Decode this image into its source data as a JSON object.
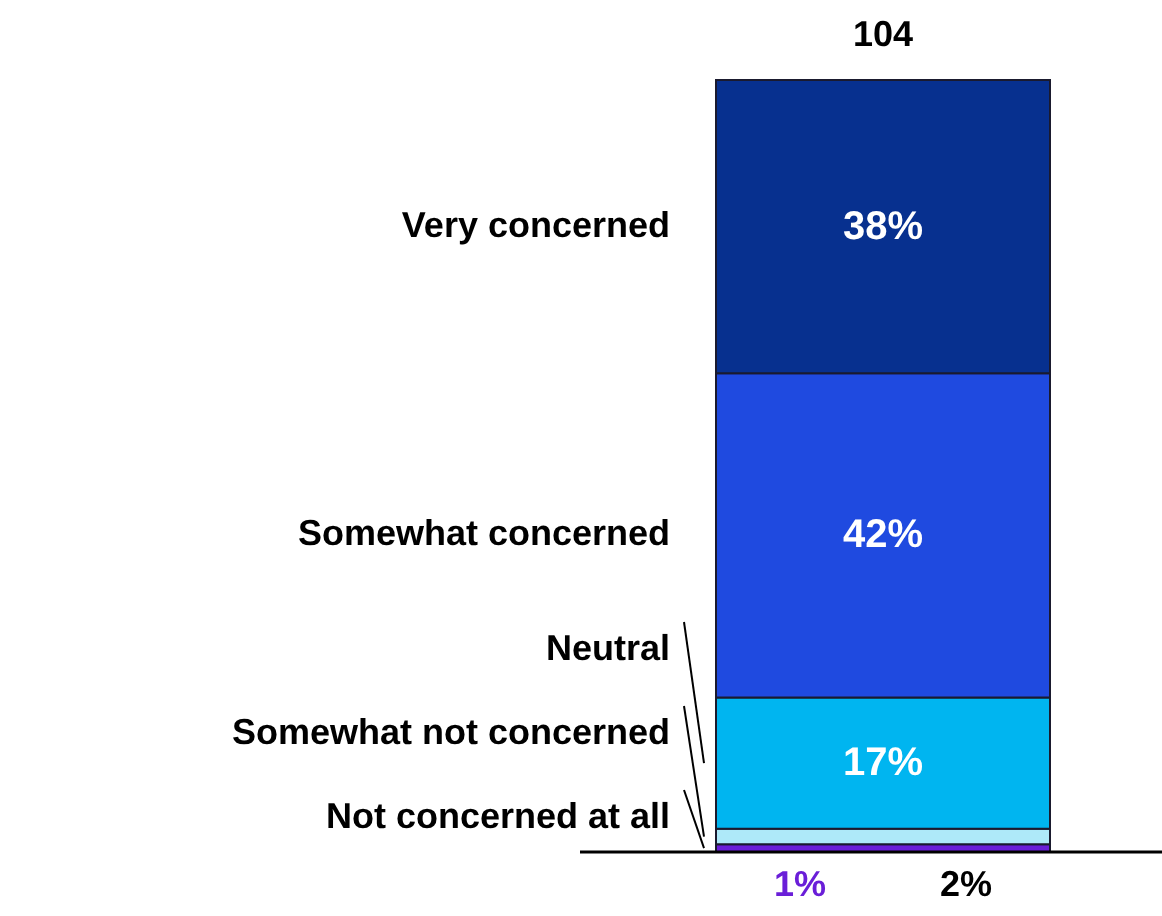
{
  "chart_data": {
    "type": "bar",
    "stacked": true,
    "categories": [
      null
    ],
    "legend": false,
    "annotations": [
      "104"
    ],
    "series": [
      {
        "name": "Not concerned at all",
        "color": "#6a1ed8",
        "values": [
          1
        ],
        "value_labels": [
          "1%"
        ]
      },
      {
        "name": "Somewhat not concerned",
        "color": "#aee9f9",
        "values": [
          2
        ],
        "value_labels": [
          "2%"
        ]
      },
      {
        "name": "Neutral",
        "color": "#00b5f0",
        "values": [
          17
        ],
        "value_labels": [
          "17%"
        ]
      },
      {
        "name": "Somewhat concerned",
        "color": "#1f4ae0",
        "values": [
          42
        ],
        "value_labels": [
          "42%"
        ]
      },
      {
        "name": "Very concerned",
        "color": "#07308f",
        "values": [
          38
        ],
        "value_labels": [
          "38%"
        ]
      }
    ]
  }
}
